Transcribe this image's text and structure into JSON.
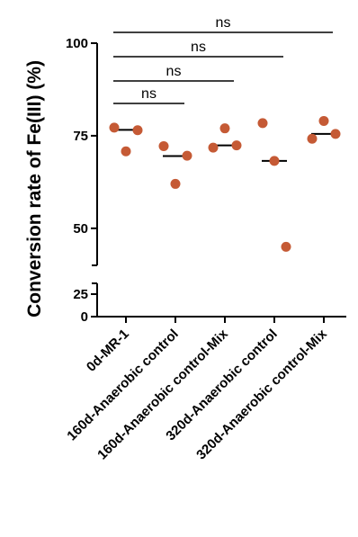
{
  "chart_data": {
    "type": "scatter",
    "ylabel": "Conversion rate of Fe(III) (%)",
    "xlabel": "",
    "title": "",
    "y_axis": {
      "broken": true,
      "lower_segment": {
        "range": [
          0,
          30
        ],
        "ticks": [
          0,
          25
        ]
      },
      "upper_segment": {
        "range": [
          40,
          100
        ],
        "ticks": [
          50,
          75,
          100
        ]
      }
    },
    "categories": [
      "0d-MR-1",
      "160d-Anaerobic control",
      "160d-Anaerobic control-Mix",
      "320d-Anaerobic control",
      "320d-Anaerobic control-Mix"
    ],
    "points": [
      [
        77.2,
        70.8,
        76.5
      ],
      [
        72.2,
        62.0,
        69.6
      ],
      [
        71.8,
        77.0,
        72.4
      ],
      [
        78.4,
        68.2,
        45.0
      ],
      [
        74.2,
        79.0,
        75.5
      ]
    ],
    "means": [
      76.6,
      69.5,
      72.4,
      68.2,
      75.5
    ],
    "point_color": "#c55a35",
    "significance": [
      {
        "from": 0,
        "to": 1,
        "label": "ns"
      },
      {
        "from": 0,
        "to": 2,
        "label": "ns"
      },
      {
        "from": 0,
        "to": 3,
        "label": "ns"
      },
      {
        "from": 0,
        "to": 4,
        "label": "ns"
      }
    ]
  }
}
